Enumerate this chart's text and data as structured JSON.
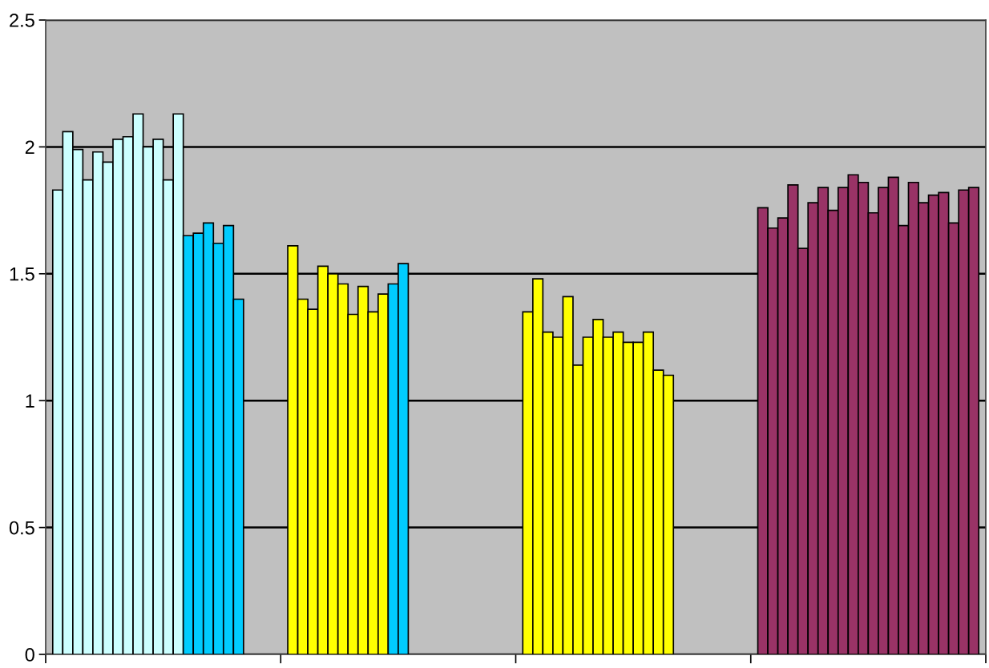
{
  "chart_data": {
    "type": "bar",
    "categories": [
      null,
      null,
      null,
      null
    ],
    "series": [
      {
        "colors": [
          "#ccffff",
          "#ffff00",
          "#ffff00",
          "#993366"
        ],
        "values": [
          1.83,
          1.61,
          1.35,
          1.76
        ]
      },
      {
        "colors": [
          "#ccffff",
          "#ffff00",
          "#ffff00",
          "#993366"
        ],
        "values": [
          2.06,
          1.4,
          1.48,
          1.68
        ]
      },
      {
        "colors": [
          "#ccffff",
          "#ffff00",
          "#ffff00",
          "#993366"
        ],
        "values": [
          1.99,
          1.36,
          1.27,
          1.72
        ]
      },
      {
        "colors": [
          "#ccffff",
          "#ffff00",
          "#ffff00",
          "#993366"
        ],
        "values": [
          1.87,
          1.53,
          1.25,
          1.85
        ]
      },
      {
        "colors": [
          "#ccffff",
          "#ffff00",
          "#ffff00",
          "#993366"
        ],
        "values": [
          1.98,
          1.5,
          1.41,
          1.6
        ]
      },
      {
        "colors": [
          "#ccffff",
          "#ffff00",
          "#ffff00",
          "#993366"
        ],
        "values": [
          1.94,
          1.46,
          1.14,
          1.78
        ]
      },
      {
        "colors": [
          "#ccffff",
          "#ffff00",
          "#ffff00",
          "#993366"
        ],
        "values": [
          2.03,
          1.34,
          1.25,
          1.84
        ]
      },
      {
        "colors": [
          "#ccffff",
          "#ffff00",
          "#ffff00",
          "#993366"
        ],
        "values": [
          2.04,
          1.45,
          1.32,
          1.75
        ]
      },
      {
        "colors": [
          "#ccffff",
          "#ffff00",
          "#ffff00",
          "#993366"
        ],
        "values": [
          2.13,
          1.35,
          1.25,
          1.84
        ]
      },
      {
        "colors": [
          "#ccffff",
          "#ffff00",
          "#ffff00",
          "#993366"
        ],
        "values": [
          2.0,
          1.42,
          1.27,
          1.89
        ]
      },
      {
        "colors": [
          "#ccffff",
          "#00ccff",
          "#ffff00",
          "#993366"
        ],
        "values": [
          2.03,
          1.46,
          1.23,
          1.86
        ]
      },
      {
        "colors": [
          "#ccffff",
          "#00ccff",
          "#ffff00",
          "#993366"
        ],
        "values": [
          1.87,
          1.54,
          1.23,
          1.74
        ]
      },
      {
        "colors": [
          "#ccffff",
          "#ffff00",
          "#ffff00",
          "#993366"
        ],
        "values": [
          2.13,
          null,
          1.27,
          1.84
        ]
      },
      {
        "colors": [
          "#00ccff",
          "#ffff00",
          "#ffff00",
          "#993366"
        ],
        "values": [
          1.65,
          null,
          1.12,
          1.88
        ]
      },
      {
        "colors": [
          "#00ccff",
          "#ffff00",
          "#ffff00",
          "#993366"
        ],
        "values": [
          1.66,
          null,
          1.1,
          1.69
        ]
      },
      {
        "colors": [
          "#00ccff",
          "#ffff00",
          "#ffff00",
          "#993366"
        ],
        "values": [
          1.7,
          null,
          null,
          1.86
        ]
      },
      {
        "colors": [
          "#00ccff",
          "#ffff00",
          "#ffff00",
          "#993366"
        ],
        "values": [
          1.62,
          null,
          null,
          1.78
        ]
      },
      {
        "colors": [
          "#00ccff",
          "#ffff00",
          "#ffff00",
          "#993366"
        ],
        "values": [
          1.69,
          null,
          null,
          1.81
        ]
      },
      {
        "colors": [
          "#00ccff",
          "#ffff00",
          "#ffff00",
          "#993366"
        ],
        "values": [
          1.4,
          null,
          null,
          1.82
        ]
      },
      {
        "colors": [
          "#00ccff",
          "#ffff00",
          "#ffff00",
          "#993366"
        ],
        "values": [
          null,
          null,
          null,
          1.7
        ]
      },
      {
        "colors": [
          "#00ccff",
          "#ffff00",
          "#ffff00",
          "#993366"
        ],
        "values": [
          null,
          null,
          null,
          1.83
        ]
      },
      {
        "colors": [
          "#00ccff",
          "#ffff00",
          "#ffff00",
          "#993366"
        ],
        "values": [
          null,
          null,
          null,
          1.84
        ]
      }
    ],
    "ylim": [
      0,
      2.5
    ],
    "yticks": [
      0,
      0.5,
      1,
      1.5,
      2,
      2.5
    ],
    "grid": "y"
  }
}
